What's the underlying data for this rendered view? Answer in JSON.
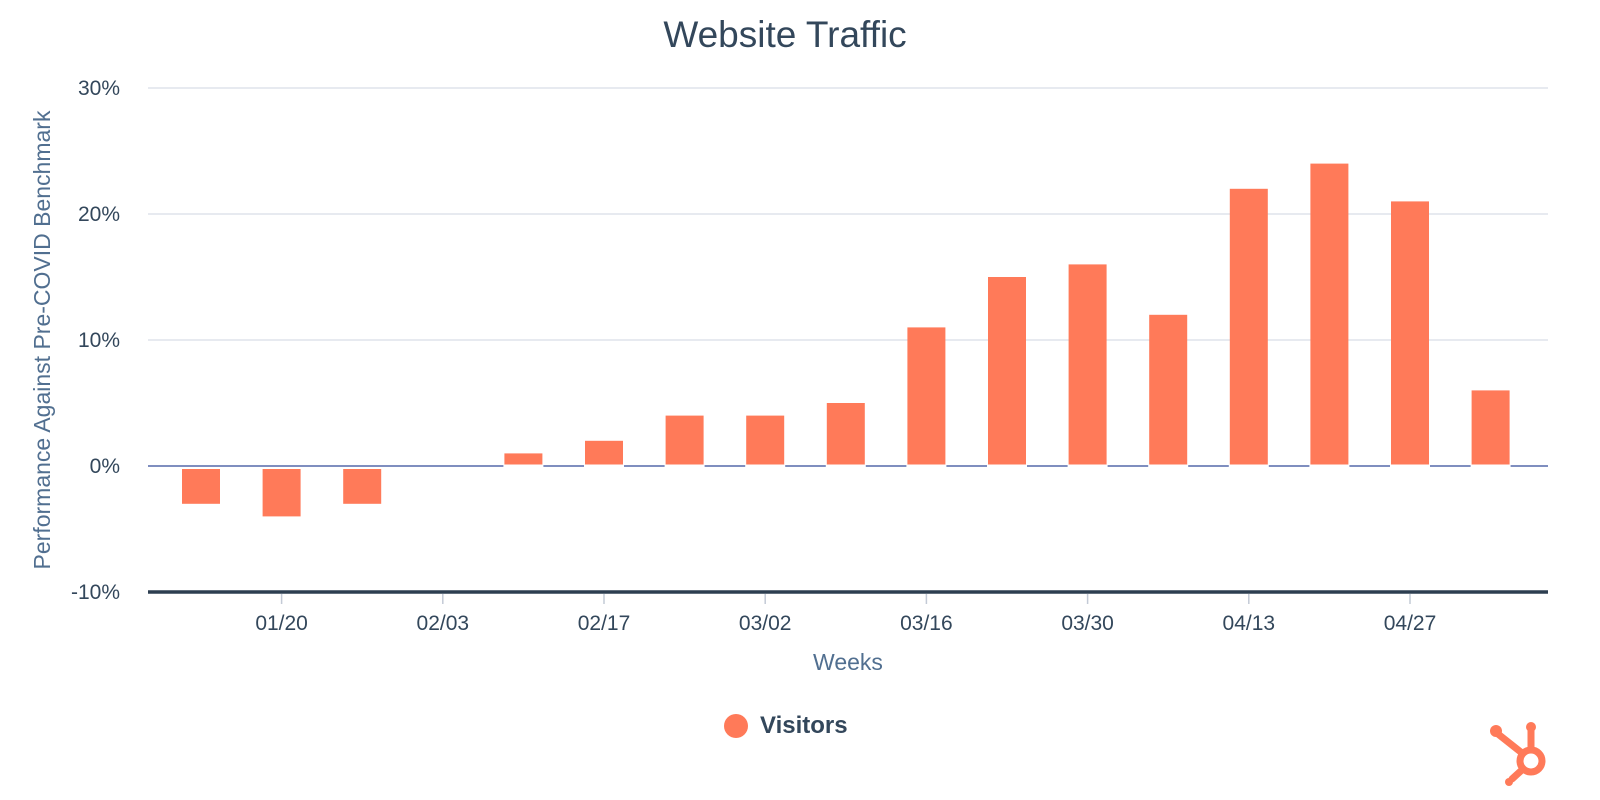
{
  "chart_data": {
    "type": "bar",
    "title": "Website Traffic",
    "xlabel": "Weeks",
    "ylabel": "Performance Against Pre-COVID Benchmark",
    "ylim": [
      -10,
      30
    ],
    "yticks": [
      -10,
      0,
      10,
      20,
      30
    ],
    "ytick_labels": [
      "-10%",
      "0%",
      "10%",
      "20%",
      "30%"
    ],
    "xtick_labels": [
      "01/20",
      "02/03",
      "02/17",
      "03/02",
      "03/16",
      "03/30",
      "04/13",
      "04/27"
    ],
    "grid": true,
    "legend_position": "bottom-center",
    "series": [
      {
        "name": "Visitors",
        "color": "#ff7a59",
        "values": [
          -3,
          -4,
          -3,
          0,
          1,
          2,
          4,
          4,
          5,
          11,
          15,
          16,
          12,
          22,
          24,
          21,
          6
        ]
      }
    ]
  },
  "branding": {
    "logo_icon": "hubspot-sprocket-icon",
    "color": "#ff7a59"
  }
}
